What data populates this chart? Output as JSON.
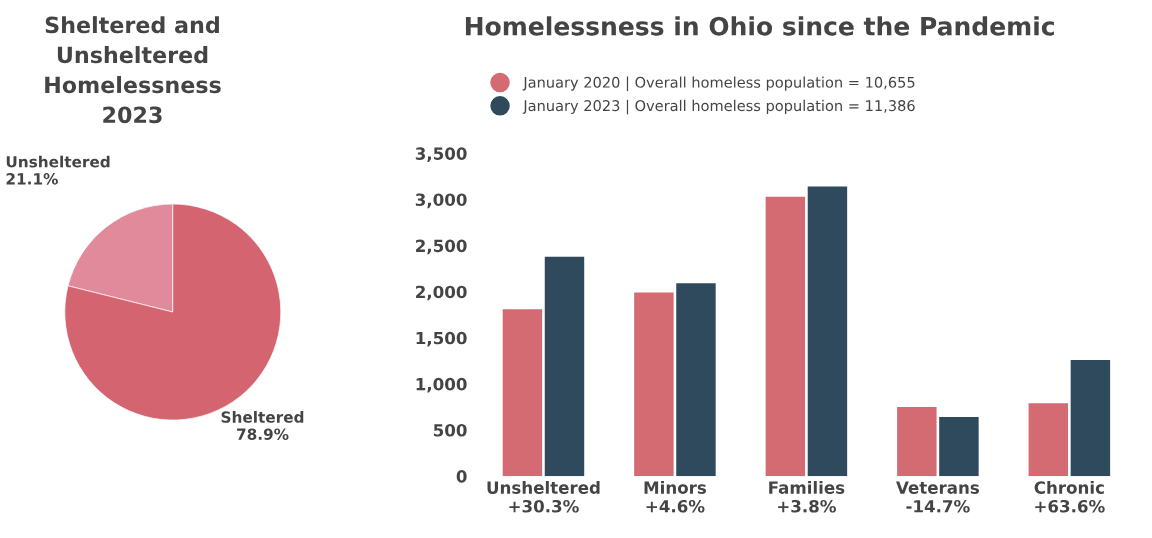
{
  "chart_data": [
    {
      "type": "pie",
      "title": "Sheltered and\nUnsheltered\nHomelessness\n2023",
      "categories": [
        "Unsheltered",
        "Sheltered"
      ],
      "values": [
        21.1,
        78.9
      ],
      "value_labels": [
        "21.1%",
        "78.9%"
      ],
      "colors": [
        "#e08a9c",
        "#d4646f"
      ]
    },
    {
      "type": "bar",
      "title": "Homelessness in Ohio since the Pandemic",
      "categories": [
        "Unsheltered\n+30.3%",
        "Minors\n+4.6%",
        "Families\n+3.8%",
        "Veterans\n-14.7%",
        "Chronic\n+63.6%"
      ],
      "series": [
        {
          "name": "January 2020 | Overall homeless population = 10,655",
          "color": "#d46a72",
          "values": [
            1810,
            1990,
            3030,
            750,
            790
          ]
        },
        {
          "name": "January 2023 | Overall homeless population = 11,386",
          "color": "#2f4a5c",
          "values": [
            2380,
            2090,
            3140,
            640,
            1260
          ]
        }
      ],
      "ylim": [
        0,
        3500
      ],
      "yticks": [
        {
          "value": 0,
          "label": "0"
        },
        {
          "value": 500,
          "label": "500"
        },
        {
          "value": 1000,
          "label": "1,000"
        },
        {
          "value": 1500,
          "label": "1,500"
        },
        {
          "value": 2000,
          "label": "2,000"
        },
        {
          "value": 2500,
          "label": "2,500"
        },
        {
          "value": 3000,
          "label": "3,000"
        },
        {
          "value": 3500,
          "label": "3,500"
        }
      ],
      "legend": "top left",
      "grid": false
    }
  ]
}
